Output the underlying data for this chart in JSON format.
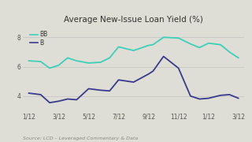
{
  "title": "Average New-Issue Loan Yield (%)",
  "source": "Source: LCD – Leveraged Commentary & Data",
  "x_labels": [
    "1/12",
    "3/12",
    "5/12",
    "7/12",
    "9/12",
    "11/12",
    "1/12",
    "3/12"
  ],
  "x_tick_pos": [
    0,
    1,
    2,
    3,
    4,
    5,
    6,
    7
  ],
  "BB_x": [
    0,
    0.4,
    0.7,
    1.0,
    1.3,
    1.6,
    2.0,
    2.4,
    2.7,
    3.0,
    3.5,
    4.0,
    4.15,
    4.5,
    5.0,
    5.4,
    5.7,
    6.0,
    6.4,
    6.7,
    7.0
  ],
  "BB_y": [
    6.4,
    6.35,
    5.9,
    6.1,
    6.6,
    6.4,
    6.25,
    6.3,
    6.6,
    7.35,
    7.1,
    7.45,
    7.5,
    8.0,
    7.95,
    7.55,
    7.3,
    7.6,
    7.5,
    7.0,
    6.6
  ],
  "B_x": [
    0,
    0.4,
    0.7,
    1.0,
    1.3,
    1.6,
    2.0,
    2.4,
    2.7,
    3.0,
    3.5,
    4.0,
    4.15,
    4.5,
    5.0,
    5.4,
    5.7,
    6.0,
    6.4,
    6.7,
    7.0
  ],
  "B_y": [
    4.2,
    4.1,
    3.55,
    3.65,
    3.8,
    3.75,
    4.5,
    4.4,
    4.35,
    5.1,
    4.95,
    5.5,
    5.7,
    6.7,
    5.9,
    4.0,
    3.8,
    3.85,
    4.05,
    4.1,
    3.85
  ],
  "BB_color": "#3ecfb8",
  "B_color": "#3a3a8c",
  "ylim_min": 3.0,
  "ylim_max": 8.8,
  "ytick_vals": [
    4,
    6,
    8
  ],
  "bg_color": "#deded6",
  "grid_color": "#bbbbbb",
  "title_fontsize": 7.5,
  "tick_fontsize": 5.5,
  "source_fontsize": 4.5,
  "legend_fontsize": 5.5,
  "legend_labels": [
    "BB",
    "B"
  ],
  "line_width": 1.3
}
